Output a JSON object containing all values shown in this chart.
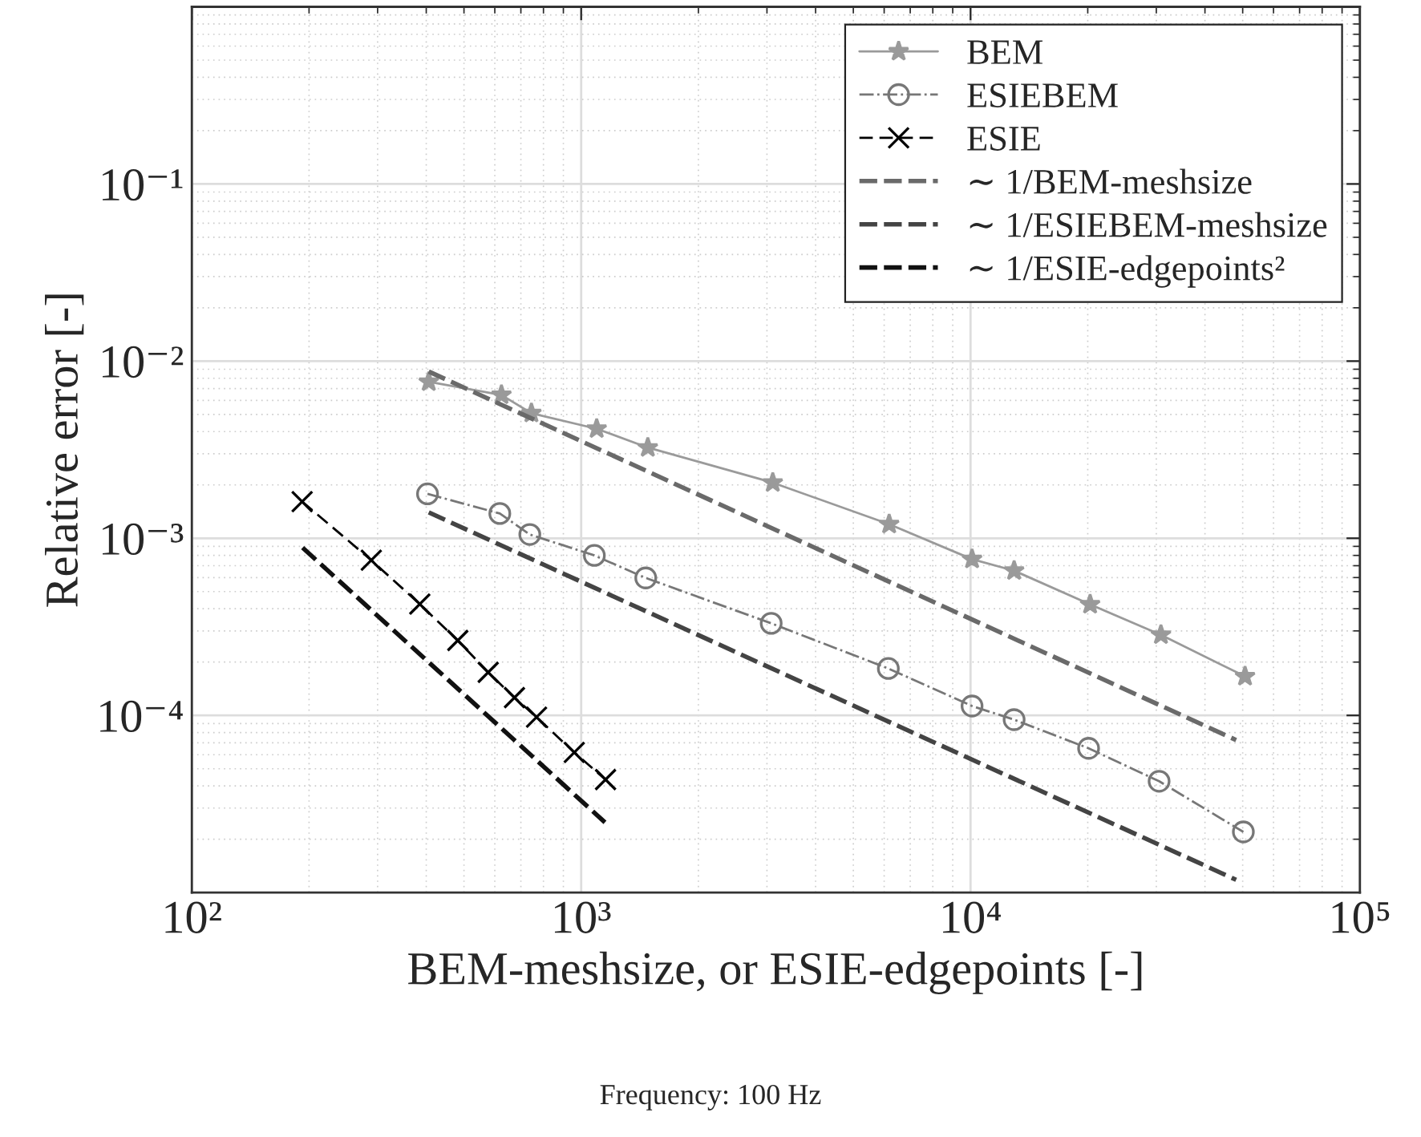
{
  "chart_data": {
    "type": "line",
    "xlabel": "BEM-meshsize, or ESIE-edgepoints [-]",
    "ylabel": "Relative error [-]",
    "annotations": [
      "Frequency: 100 Hz"
    ],
    "log": "xy",
    "grid": true,
    "legend": "top right",
    "xlim": [
      100,
      100000
    ],
    "ylim": [
      1e-05,
      1
    ],
    "xticks": [
      {
        "value": 100,
        "label": "10²"
      },
      {
        "value": 1000,
        "label": "10³"
      },
      {
        "value": 10000,
        "label": "10⁴"
      },
      {
        "value": 100000,
        "label": "10⁵"
      }
    ],
    "yticks": [
      {
        "value": 0.0001,
        "label": "10⁻⁴"
      },
      {
        "value": 0.001,
        "label": "10⁻³"
      },
      {
        "value": 0.01,
        "label": "10⁻²"
      },
      {
        "value": 0.1,
        "label": "10⁻¹"
      }
    ],
    "series": [
      {
        "name": "BEM",
        "color": "#9a9a9a",
        "marker": "star",
        "line_style": "solid",
        "x": [
          406,
          624,
          745,
          1096,
          1483,
          3105,
          6180,
          10090,
          12940,
          20280,
          30830,
          50700
        ],
        "values": [
          0.00764,
          0.00644,
          0.00508,
          0.00415,
          0.00325,
          0.00206,
          0.0012,
          0.000762,
          0.000656,
          0.000423,
          0.000285,
          0.000166
        ]
      },
      {
        "name": "ESIEBEM",
        "color": "#777777",
        "marker": "circle",
        "line_style": "dashdot",
        "x": [
          403,
          618,
          738,
          1081,
          1465,
          3076,
          6150,
          10090,
          12940,
          20100,
          30500,
          50200
        ],
        "values": [
          0.00178,
          0.00138,
          0.00105,
          0.0008,
          0.000597,
          0.000331,
          0.000184,
          0.000113,
          9.46e-05,
          6.52e-05,
          4.25e-05,
          2.2e-05
        ]
      },
      {
        "name": "ESIE",
        "color": "#000000",
        "marker": "cross",
        "line_style": "dashed",
        "x": [
          192,
          289,
          385,
          482,
          577,
          674,
          768,
          960,
          1155
        ],
        "values": [
          0.00161,
          0.000752,
          0.000425,
          0.000265,
          0.000175,
          0.000126,
          9.77e-05,
          6.18e-05,
          4.34e-05
        ]
      },
      {
        "name": "∼ 1/BEM-meshsize",
        "color": "#6a6a6a",
        "marker": "none",
        "line_style": "dashed",
        "x": [
          406,
          48100
        ],
        "values": [
          0.00873,
          7.26e-05
        ]
      },
      {
        "name": "∼ 1/ESIEBEM-meshsize",
        "color": "#444444",
        "marker": "none",
        "line_style": "dashed",
        "x": [
          406,
          48100
        ],
        "values": [
          0.0014,
          1.18e-05
        ]
      },
      {
        "name": "∼ 1/ESIE-edgepoints²",
        "color": "#111111",
        "marker": "none",
        "line_style": "dashed",
        "x": [
          192.5,
          1151
        ],
        "values": [
          0.000885,
          2.49e-05
        ]
      }
    ]
  }
}
